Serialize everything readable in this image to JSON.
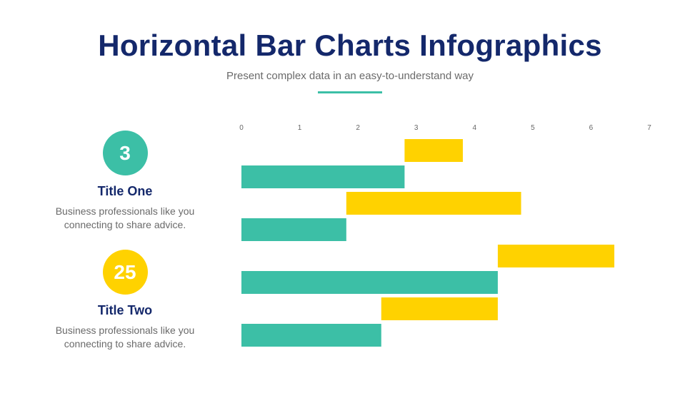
{
  "header": {
    "title": "Horizontal Bar Charts Infographics",
    "subtitle": "Present complex data in an easy-to-understand way"
  },
  "cards": [
    {
      "badge": "3",
      "title": "Title One",
      "text_lines": [
        "Business professionals like you",
        "connecting to share advice."
      ],
      "color": "#3cbfa6"
    },
    {
      "badge": "25",
      "title": "Title Two",
      "text_lines": [
        "Business professionals like you",
        "connecting to share advice."
      ],
      "color": "#ffd200"
    }
  ],
  "colors": {
    "accent": "#3cbfa6",
    "teal": "#3cbfa6",
    "yellow": "#ffd200",
    "navy": "#14286b"
  },
  "chart_data": {
    "type": "bar",
    "orientation": "horizontal",
    "stacked_floating": true,
    "title": "",
    "xlabel": "",
    "ylabel": "",
    "xlim": [
      0,
      7
    ],
    "xticks": [
      0,
      1,
      2,
      3,
      4,
      5,
      6,
      7
    ],
    "grid": false,
    "bars": [
      {
        "start": 2.8,
        "end": 3.8,
        "color": "#ffd200"
      },
      {
        "start": 0,
        "end": 2.8,
        "color": "#3cbfa6"
      },
      {
        "start": 1.8,
        "end": 4.8,
        "color": "#ffd200"
      },
      {
        "start": 0,
        "end": 1.8,
        "color": "#3cbfa6"
      },
      {
        "start": 4.4,
        "end": 6.4,
        "color": "#ffd200"
      },
      {
        "start": 0,
        "end": 4.4,
        "color": "#3cbfa6"
      },
      {
        "start": 2.4,
        "end": 4.4,
        "color": "#ffd200"
      },
      {
        "start": 0,
        "end": 2.4,
        "color": "#3cbfa6"
      }
    ]
  }
}
